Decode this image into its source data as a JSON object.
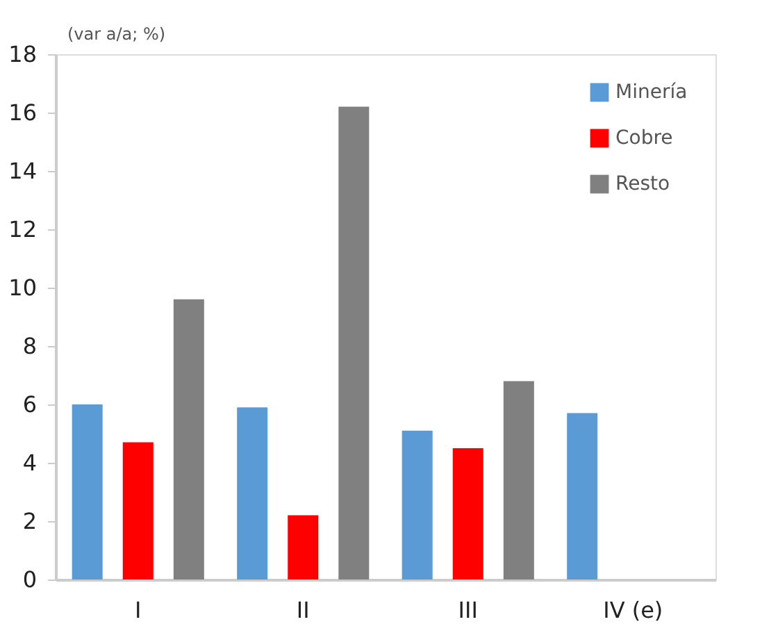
{
  "chart_data": {
    "type": "bar",
    "ylabel": "(var a/a; %)",
    "categories": [
      "I",
      "II",
      "III",
      "IV (e)"
    ],
    "series": [
      {
        "name": "Minería",
        "color": "#5b9bd5",
        "values": [
          6.0,
          5.9,
          5.1,
          5.7
        ]
      },
      {
        "name": "Cobre",
        "color": "#ff0000",
        "values": [
          4.7,
          2.2,
          4.5,
          null
        ]
      },
      {
        "name": "Resto",
        "color": "#808080",
        "values": [
          9.6,
          16.2,
          6.8,
          null
        ]
      }
    ],
    "ylim": [
      0,
      18
    ],
    "yticks": [
      0,
      2,
      4,
      6,
      8,
      10,
      12,
      14,
      16,
      18
    ],
    "grid": false,
    "legend": "top right"
  }
}
